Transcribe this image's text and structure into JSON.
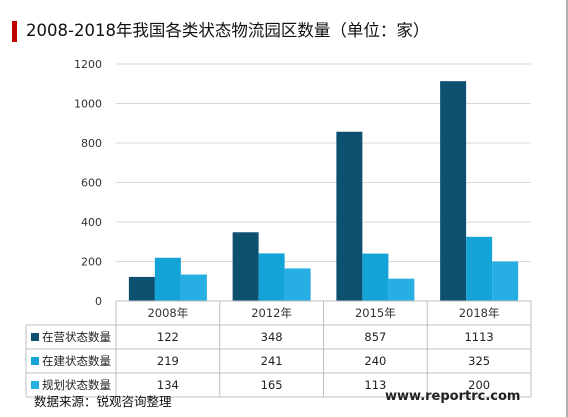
{
  "title": "2008-2018年我国各类状态物流园区数量（单位：家）",
  "source": "数据来源：锐观咨询整理",
  "website": "www.reportrc.com",
  "chart_data": {
    "type": "bar",
    "title": "2008-2018年我国各类状态物流园区数量（单位：家）",
    "categories": [
      "2008年",
      "2012年",
      "2015年",
      "2018年"
    ],
    "series": [
      {
        "name": "在营状态数量",
        "values": [
          122,
          348,
          857,
          1113
        ],
        "color": "#0d5070"
      },
      {
        "name": "在建状态数量",
        "values": [
          219,
          241,
          240,
          325
        ],
        "color": "#14a3d6"
      },
      {
        "name": "规划状态数量",
        "values": [
          134,
          165,
          113,
          200
        ],
        "color": "#27aee2"
      }
    ],
    "ylim": [
      0,
      1200
    ],
    "yticks": [
      0,
      200,
      400,
      600,
      800,
      1000,
      1200
    ],
    "grid": true,
    "legend": "data-table-below"
  }
}
